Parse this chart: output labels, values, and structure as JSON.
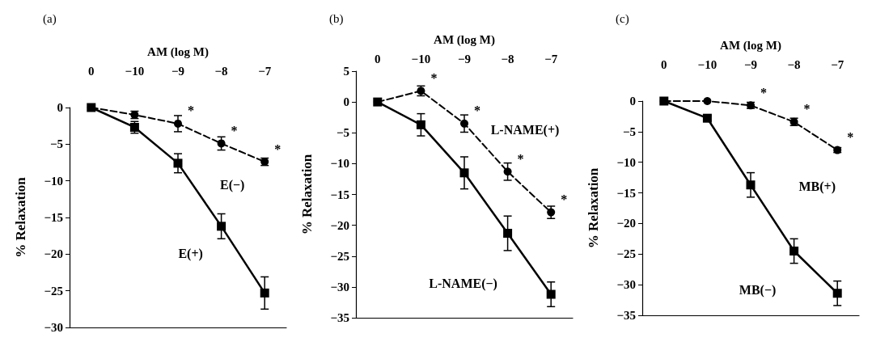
{
  "chart_data": [
    {
      "type": "line",
      "title": "(a)",
      "xlabel": "AM (log M)",
      "ylabel": "% Relaxation",
      "categories": [
        "0",
        "−10",
        "−9",
        "−8",
        "−7"
      ],
      "ylim": [
        -30,
        0
      ],
      "yticks": [
        0,
        -5,
        -10,
        -15,
        -20,
        -25,
        -30
      ],
      "grid": false,
      "legend": false,
      "series": [
        {
          "name": "E(+)",
          "color": "#000000",
          "marker": "square",
          "line_style": "solid",
          "values": [
            0,
            -2.7,
            -7.6,
            -16.2,
            -25.3
          ],
          "errors": [
            null,
            0.8,
            1.3,
            1.7,
            2.2
          ]
        },
        {
          "name": "E(−)",
          "color": "#000000",
          "marker": "circle",
          "line_style": "dashed",
          "values": [
            0,
            -1.0,
            -2.2,
            -4.9,
            -7.4
          ],
          "errors": [
            null,
            0.5,
            1.1,
            0.9,
            0.5
          ]
        }
      ],
      "annotations": [
        {
          "text": "*",
          "x": "−9",
          "y": -2.2
        },
        {
          "text": "*",
          "x": "−8",
          "y": -4.9
        },
        {
          "text": "*",
          "x": "−7",
          "y": -7.4
        }
      ]
    },
    {
      "type": "line",
      "title": "(b)",
      "xlabel": "AM (log M)",
      "ylabel": "% Relaxation",
      "categories": [
        "0",
        "−10",
        "−9",
        "−8",
        "−7"
      ],
      "ylim": [
        -35,
        5
      ],
      "yticks": [
        5,
        0,
        -5,
        -10,
        -15,
        -20,
        -25,
        -30,
        -35
      ],
      "grid": false,
      "legend": false,
      "series": [
        {
          "name": "L-NAME(−)",
          "color": "#000000",
          "marker": "square",
          "line_style": "solid",
          "values": [
            0,
            -3.7,
            -11.5,
            -21.3,
            -31.2
          ],
          "errors": [
            null,
            1.8,
            2.6,
            2.8,
            2.0
          ]
        },
        {
          "name": "L-NAME(+)",
          "color": "#000000",
          "marker": "circle",
          "line_style": "dashed",
          "values": [
            0,
            1.8,
            -3.5,
            -11.3,
            -17.9
          ],
          "errors": [
            null,
            0.8,
            1.4,
            1.4,
            1.0
          ]
        }
      ],
      "annotations": [
        {
          "text": "*",
          "x": "−10",
          "y": 1.8
        },
        {
          "text": "*",
          "x": "−9",
          "y": -3.5
        },
        {
          "text": "*",
          "x": "−8",
          "y": -11.3
        },
        {
          "text": "*",
          "x": "−7",
          "y": -17.9
        }
      ]
    },
    {
      "type": "line",
      "title": "(c)",
      "xlabel": "AM (log M)",
      "ylabel": "% Relaxation",
      "categories": [
        "0",
        "−10",
        "−9",
        "−8",
        "−7"
      ],
      "ylim": [
        -35,
        0
      ],
      "yticks": [
        0,
        -5,
        -10,
        -15,
        -20,
        -25,
        -30,
        -35
      ],
      "grid": false,
      "legend": false,
      "series": [
        {
          "name": "MB(−)",
          "color": "#000000",
          "marker": "square",
          "line_style": "solid",
          "values": [
            0,
            -2.8,
            -13.7,
            -24.5,
            -31.4
          ],
          "errors": [
            null,
            0.4,
            2.0,
            2.0,
            2.0
          ]
        },
        {
          "name": "MB(+)",
          "color": "#000000",
          "marker": "circle",
          "line_style": "dashed",
          "values": [
            0,
            0,
            -0.7,
            -3.4,
            -8.0
          ],
          "errors": [
            null,
            null,
            0.5,
            0.6,
            0.4
          ]
        }
      ],
      "annotations": [
        {
          "text": "*",
          "x": "−9",
          "y": -0.7
        },
        {
          "text": "*",
          "x": "−8",
          "y": -3.4
        },
        {
          "text": "*",
          "x": "−7",
          "y": -8.0
        }
      ]
    }
  ]
}
